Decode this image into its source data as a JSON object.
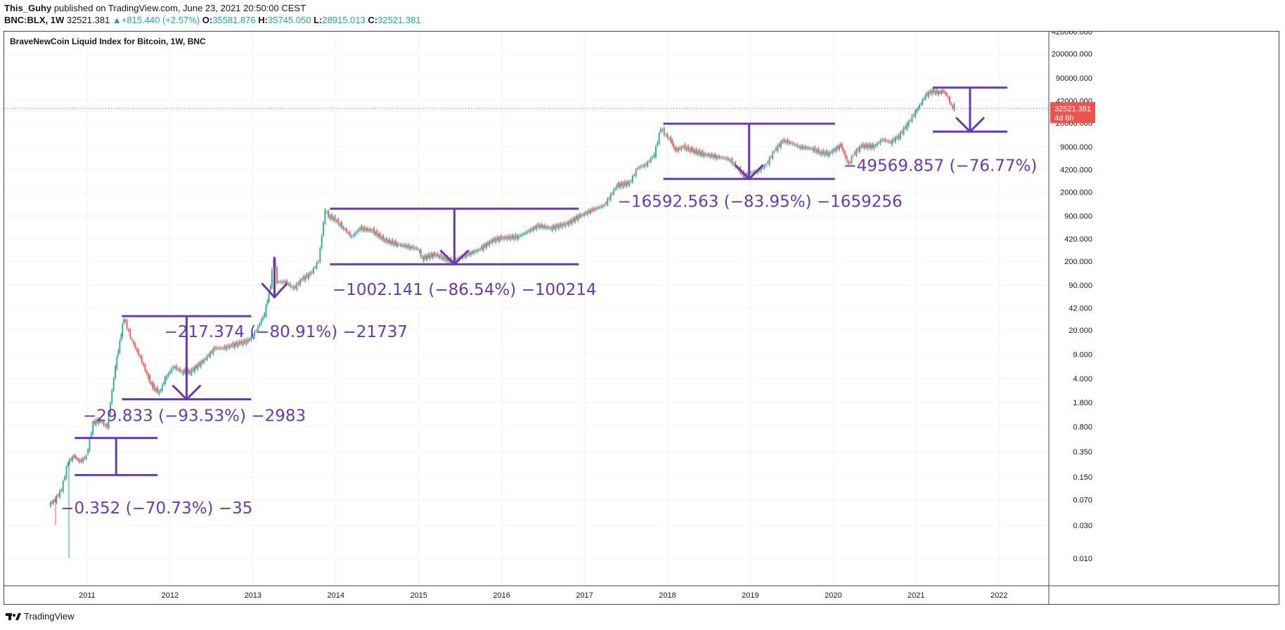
{
  "header": {
    "author": "This_Guhy",
    "published": "published on TradingView.com, June 23, 2021 20:50:00 CEST",
    "symbol": "BNC:BLX, 1W",
    "last": "32521.381",
    "change_arrow": "▲",
    "change": "+815.440 (+2.57%)",
    "o_label": "O:",
    "o": "35581.876",
    "h_label": "H:",
    "h": "35745.050",
    "l_label": "L:",
    "l": "28915.013",
    "c_label": "C:",
    "c": "32521.381"
  },
  "footer": {
    "brand": "TradingView"
  },
  "colors": {
    "up": "#26a69a",
    "down": "#ef5350",
    "annotation": "#673ab7",
    "price_line": "#ef5350"
  },
  "chart_data": {
    "type": "line",
    "title": "BraveNewCoin Liquid Index for Bitcoin, 1W, BNC",
    "y_scale": "log",
    "ylim": [
      0.004,
      420000
    ],
    "xlim": [
      2010.0,
      2022.6
    ],
    "y_ticks": [
      "420000.000",
      "200000.000",
      "90000.000",
      "42000.000",
      "20000.000",
      "9000.000",
      "4200.000",
      "2000.000",
      "900.000",
      "420.000",
      "200.000",
      "90.000",
      "42.000",
      "20.000",
      "9.000",
      "4.000",
      "1.800",
      "0.800",
      "0.350",
      "0.150",
      "0.070",
      "0.030",
      "0.010"
    ],
    "y_tick_values": [
      420000,
      200000,
      90000,
      42000,
      20000,
      9000,
      4200,
      2000,
      900,
      420,
      200,
      90,
      42,
      20,
      9,
      4,
      1.8,
      0.8,
      0.35,
      0.15,
      0.07,
      0.03,
      0.01
    ],
    "x_ticks": [
      "2011",
      "2012",
      "2013",
      "2014",
      "2015",
      "2016",
      "2017",
      "2018",
      "2019",
      "2020",
      "2021",
      "2022"
    ],
    "x_tick_values": [
      2011,
      2012,
      2013,
      2014,
      2015,
      2016,
      2017,
      2018,
      2019,
      2020,
      2021,
      2022
    ],
    "last_price": {
      "value": 32521.381,
      "label": "32521.381",
      "countdown": "4d 6h"
    },
    "series": [
      {
        "name": "BLX weekly",
        "x": [
          2010.55,
          2010.62,
          2010.7,
          2010.78,
          2010.85,
          2010.92,
          2011.0,
          2011.08,
          2011.15,
          2011.25,
          2011.35,
          2011.42,
          2011.45,
          2011.55,
          2011.65,
          2011.75,
          2011.8,
          2011.88,
          2011.95,
          2012.05,
          2012.15,
          2012.25,
          2012.4,
          2012.55,
          2012.65,
          2012.75,
          2012.85,
          2012.95,
          2013.05,
          2013.15,
          2013.22,
          2013.26,
          2013.3,
          2013.4,
          2013.5,
          2013.6,
          2013.7,
          2013.8,
          2013.88,
          2013.92,
          2014.0,
          2014.1,
          2014.2,
          2014.3,
          2014.45,
          2014.6,
          2014.75,
          2014.9,
          2015.0,
          2015.05,
          2015.2,
          2015.4,
          2015.6,
          2015.75,
          2015.9,
          2016.0,
          2016.2,
          2016.45,
          2016.6,
          2016.8,
          2016.95,
          2017.1,
          2017.25,
          2017.4,
          2017.55,
          2017.65,
          2017.75,
          2017.85,
          2017.93,
          2017.97,
          2018.05,
          2018.1,
          2018.2,
          2018.3,
          2018.45,
          2018.6,
          2018.75,
          2018.85,
          2018.93,
          2019.0,
          2019.1,
          2019.2,
          2019.3,
          2019.4,
          2019.48,
          2019.6,
          2019.75,
          2019.85,
          2019.95,
          2020.1,
          2020.19,
          2020.25,
          2020.35,
          2020.5,
          2020.6,
          2020.7,
          2020.8,
          2020.9,
          2021.0,
          2021.05,
          2021.12,
          2021.2,
          2021.28,
          2021.33,
          2021.38,
          2021.43,
          2021.47
        ],
        "y": [
          0.06,
          0.07,
          0.1,
          0.25,
          0.3,
          0.25,
          0.3,
          0.9,
          1.0,
          0.8,
          6,
          18,
          30,
          14,
          8,
          4,
          3,
          2.5,
          4,
          6,
          5,
          5,
          7,
          11,
          11,
          12,
          13,
          14,
          20,
          35,
          90,
          230,
          100,
          100,
          80,
          110,
          130,
          200,
          1100,
          900,
          800,
          600,
          450,
          600,
          550,
          400,
          350,
          320,
          300,
          220,
          250,
          200,
          250,
          300,
          400,
          430,
          450,
          650,
          600,
          700,
          900,
          1100,
          1300,
          2500,
          2700,
          4500,
          5000,
          7000,
          17000,
          14000,
          11000,
          8000,
          9000,
          8000,
          7000,
          6500,
          6000,
          4500,
          3400,
          3800,
          4000,
          5000,
          8000,
          11000,
          10500,
          9000,
          8500,
          7500,
          7200,
          9500,
          5000,
          7000,
          9300,
          9200,
          11500,
          10500,
          13000,
          19000,
          29000,
          36000,
          50000,
          58000,
          55000,
          58000,
          50000,
          36000,
          32521
        ]
      }
    ],
    "annotations": [
      {
        "text": "−0.352 (−70.73%) −35"
      },
      {
        "text": "−29.833 (−93.53%) −2983"
      },
      {
        "text": "−217.374 (−80.91%) −21737"
      },
      {
        "text": "−1002.141 (−86.54%) −100214"
      },
      {
        "text": "−16592.563 (−83.95%) −1659256"
      },
      {
        "text": "−49569.857 (−76.77%)"
      }
    ]
  }
}
